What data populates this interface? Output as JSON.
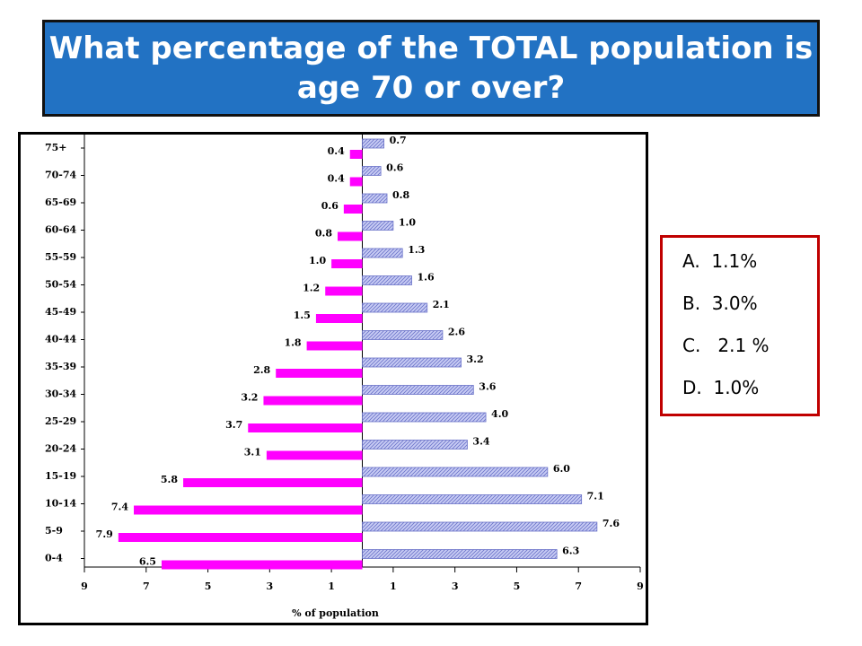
{
  "title": "What percentage of the TOTAL population is age 70 or over?",
  "answers": [
    "A.  1.1%",
    "B.  3.0%",
    "C.   2.1 %",
    "D.  1.0%"
  ],
  "chart_data": {
    "type": "pyramid",
    "x_label": "% of population",
    "categories": [
      "75+",
      "70-74",
      "65-69",
      "60-64",
      "55-59",
      "50-54",
      "45-49",
      "40-44",
      "35-39",
      "30-34",
      "25-29",
      "20-24",
      "15-19",
      "10-14",
      "5-9",
      "0-4"
    ],
    "series": [
      {
        "color": "#ff00ff",
        "values": [
          0.4,
          0.4,
          0.6,
          0.8,
          1.0,
          1.2,
          1.5,
          1.8,
          2.8,
          3.2,
          3.7,
          3.1,
          5.8,
          7.4,
          7.9,
          6.5
        ],
        "value_labels": [
          "0.4",
          "0.4",
          "0.6",
          "0.8",
          "1.0",
          "1.2",
          "1.5",
          "1.8",
          "2.8",
          "3.2",
          "3.7",
          "3.1",
          "5.8",
          "7.4",
          "7.9",
          "6.5"
        ]
      },
      {
        "color": "#c8ccf4",
        "hatch": true,
        "values": [
          0.7,
          0.6,
          0.8,
          1.0,
          1.3,
          1.6,
          2.1,
          2.6,
          3.2,
          3.6,
          4.0,
          3.4,
          6.0,
          7.1,
          7.6,
          6.3
        ],
        "value_labels": [
          "0.7",
          "0.6",
          "0.8",
          "1.0",
          "1.3",
          "1.6",
          "2.1",
          "2.6",
          "3.2",
          "3.6",
          "4.0",
          "3.4",
          "6.0",
          "7.1",
          "7.6",
          "6.3"
        ]
      }
    ],
    "xlim": [
      -9,
      9
    ],
    "xticks": [
      {
        "value": -9,
        "label": "9"
      },
      {
        "value": -7,
        "label": "7"
      },
      {
        "value": -5,
        "label": "5"
      },
      {
        "value": -3,
        "label": "3"
      },
      {
        "value": -1,
        "label": "1"
      },
      1,
      3,
      5,
      7,
      9
    ]
  }
}
